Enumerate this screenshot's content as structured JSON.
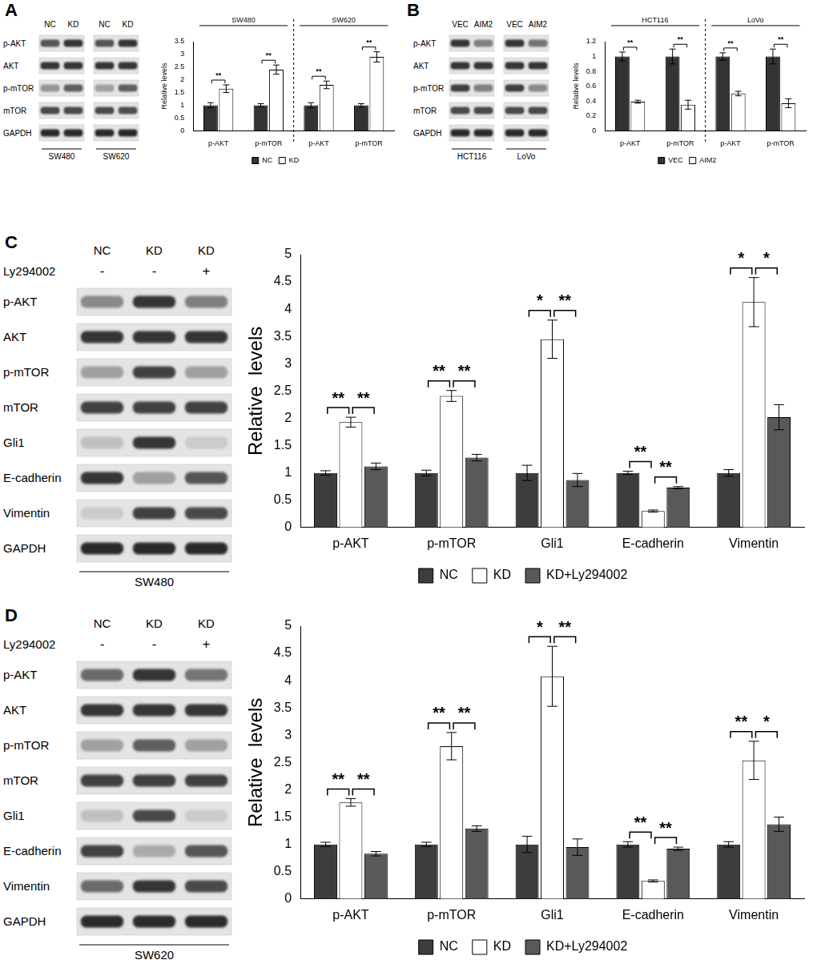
{
  "chart_data": [
    {
      "type": "bar",
      "panel": "A",
      "y_label": "Relative levels",
      "categories": [
        "p-AKT",
        "p-mTOR",
        "p-AKT",
        "p-mTOR"
      ],
      "groups": [
        "SW480",
        "SW620"
      ],
      "series": [
        {
          "name": "NC",
          "color": "#333333",
          "values": [
            1,
            1,
            1,
            1
          ],
          "errors": [
            0.1,
            0.06,
            0.1,
            0.06
          ]
        },
        {
          "name": "KD",
          "color": "#ffffff",
          "values": [
            1.65,
            2.4,
            1.8,
            2.9
          ],
          "errors": [
            0.15,
            0.18,
            0.15,
            0.2
          ]
        }
      ],
      "significance": [
        {
          "from": "NC",
          "to": "KD",
          "labels": [
            "**",
            "**",
            "**",
            "**"
          ]
        }
      ],
      "ylim": [
        0,
        3.5
      ],
      "yticks": [
        0,
        0.5,
        1,
        1.5,
        2,
        2.5,
        3,
        3.5
      ],
      "grid": false,
      "legend": "bottom"
    },
    {
      "type": "bar",
      "panel": "B",
      "y_label": "Relative levels",
      "categories": [
        "p-AKT",
        "p-mTOR",
        "p-AKT",
        "p-mTOR"
      ],
      "groups": [
        "HCT116",
        "LoVo"
      ],
      "series": [
        {
          "name": "VEC",
          "color": "#333333",
          "values": [
            1,
            1,
            1,
            1
          ],
          "errors": [
            0.06,
            0.1,
            0.05,
            0.1
          ]
        },
        {
          "name": "AIM2",
          "color": "#ffffff",
          "values": [
            0.39,
            0.35,
            0.5,
            0.37
          ],
          "errors": [
            0.02,
            0.06,
            0.03,
            0.06
          ]
        }
      ],
      "significance": [
        {
          "from": "VEC",
          "to": "AIM2",
          "labels": [
            "**",
            "**",
            "**",
            "**"
          ]
        }
      ],
      "ylim": [
        0,
        1.2
      ],
      "yticks": [
        0,
        0.2,
        0.4,
        0.6,
        0.8,
        1,
        1.2
      ],
      "grid": false,
      "legend": "bottom"
    },
    {
      "type": "bar",
      "panel": "C",
      "y_label": "Relative  levels",
      "categories": [
        "p-AKT",
        "p-mTOR",
        "Gli1",
        "E-cadherin",
        "Vimentin"
      ],
      "series": [
        {
          "name": "NC",
          "color": "#3d3d3d",
          "values": [
            1,
            1,
            1,
            1,
            1
          ],
          "errors": [
            0.04,
            0.05,
            0.14,
            0.03,
            0.06
          ]
        },
        {
          "name": "KD",
          "color": "#ffffff",
          "values": [
            1.93,
            2.41,
            3.45,
            0.3,
            4.13
          ],
          "errors": [
            0.09,
            0.1,
            0.35,
            0.02,
            0.45
          ]
        },
        {
          "name": "KD+Ly294002",
          "color": "#595959",
          "values": [
            1.12,
            1.28,
            0.87,
            0.73,
            2.02
          ],
          "errors": [
            0.06,
            0.06,
            0.12,
            0.02,
            0.23
          ]
        }
      ],
      "significance": [
        {
          "from": "NC",
          "to": "KD",
          "labels": [
            "**",
            "**",
            "*",
            "**",
            "*"
          ]
        },
        {
          "from": "KD",
          "to": "KD+Ly294002",
          "labels": [
            "**",
            "**",
            "**",
            "**",
            "*"
          ]
        }
      ],
      "ylim": [
        0,
        5
      ],
      "yticks": [
        0,
        0.5,
        1,
        1.5,
        2,
        2.5,
        3,
        3.5,
        4,
        4.5,
        5
      ],
      "grid": false,
      "legend": "bottom"
    },
    {
      "type": "bar",
      "panel": "D",
      "y_label": "Relative  levels",
      "categories": [
        "p-AKT",
        "p-mTOR",
        "Gli1",
        "E-cadherin",
        "Vimentin"
      ],
      "series": [
        {
          "name": "NC",
          "color": "#3d3d3d",
          "values": [
            1,
            1,
            1,
            1,
            1
          ],
          "errors": [
            0.04,
            0.04,
            0.15,
            0.05,
            0.05
          ]
        },
        {
          "name": "KD",
          "color": "#ffffff",
          "values": [
            1.77,
            2.8,
            4.08,
            0.33,
            2.54
          ],
          "errors": [
            0.07,
            0.25,
            0.55,
            0.02,
            0.35
          ]
        },
        {
          "name": "KD+Ly294002",
          "color": "#595959",
          "values": [
            0.83,
            1.29,
            0.95,
            0.92,
            1.37
          ],
          "errors": [
            0.04,
            0.05,
            0.15,
            0.03,
            0.13
          ]
        }
      ],
      "significance": [
        {
          "from": "NC",
          "to": "KD",
          "labels": [
            "**",
            "**",
            "*",
            "**",
            "**"
          ]
        },
        {
          "from": "KD",
          "to": "KD+Ly294002",
          "labels": [
            "**",
            "**",
            "**",
            "**",
            "*"
          ]
        }
      ],
      "ylim": [
        0,
        5
      ],
      "yticks": [
        0,
        0.5,
        1,
        1.5,
        2,
        2.5,
        3,
        3.5,
        4,
        4.5,
        5
      ],
      "grid": false,
      "legend": "bottom"
    }
  ],
  "blots": [
    {
      "row_labels": [
        "p-AKT",
        "AKT",
        "p-mTOR",
        "mTOR",
        "GAPDH"
      ],
      "groups": [
        {
          "label": "SW480",
          "lanes": [
            "NC",
            "KD"
          ],
          "bands": [
            [
              0.7,
              0.85
            ],
            [
              0.85,
              0.85
            ],
            [
              0.4,
              0.65
            ],
            [
              0.75,
              0.75
            ],
            [
              0.9,
              0.9
            ]
          ]
        },
        {
          "label": "SW620",
          "lanes": [
            "NC",
            "KD"
          ],
          "bands": [
            [
              0.7,
              0.85
            ],
            [
              0.85,
              0.85
            ],
            [
              0.35,
              0.65
            ],
            [
              0.75,
              0.72
            ],
            [
              0.9,
              0.9
            ]
          ]
        }
      ]
    },
    {
      "row_labels": [
        "p-AKT",
        "AKT",
        "p-mTOR",
        "mTOR",
        "GAPDH"
      ],
      "groups": [
        {
          "label": "HCT116",
          "lanes": [
            "VEC",
            "AIM2"
          ],
          "bands": [
            [
              0.85,
              0.5
            ],
            [
              0.85,
              0.85
            ],
            [
              0.8,
              0.5
            ],
            [
              0.75,
              0.75
            ],
            [
              0.9,
              0.9
            ]
          ]
        },
        {
          "label": "LoVo",
          "lanes": [
            "VEC",
            "AIM2"
          ],
          "bands": [
            [
              0.85,
              0.55
            ],
            [
              0.85,
              0.85
            ],
            [
              0.8,
              0.45
            ],
            [
              0.75,
              0.75
            ],
            [
              0.9,
              0.9
            ]
          ]
        }
      ]
    },
    {
      "row_labels": [
        "p-AKT",
        "AKT",
        "p-mTOR",
        "mTOR",
        "Gli1",
        "E-cadherin",
        "Vimentin",
        "GAPDH"
      ],
      "treatment_label": "Ly294002",
      "groups": [
        {
          "label": "SW480",
          "lanes": [
            "NC",
            "KD",
            "KD"
          ],
          "treatment": [
            "-",
            "-",
            "+"
          ],
          "bands": [
            [
              0.45,
              0.85,
              0.5
            ],
            [
              0.85,
              0.85,
              0.85
            ],
            [
              0.35,
              0.8,
              0.35
            ],
            [
              0.8,
              0.8,
              0.8
            ],
            [
              0.2,
              0.85,
              0.15
            ],
            [
              0.85,
              0.35,
              0.7
            ],
            [
              0.15,
              0.8,
              0.75
            ],
            [
              0.9,
              0.9,
              0.9
            ]
          ]
        }
      ]
    },
    {
      "row_labels": [
        "p-AKT",
        "AKT",
        "p-mTOR",
        "mTOR",
        "Gli1",
        "E-cadherin",
        "Vimentin",
        "GAPDH"
      ],
      "treatment_label": "Ly294002",
      "groups": [
        {
          "label": "SW620",
          "lanes": [
            "NC",
            "KD",
            "KD"
          ],
          "treatment": [
            "-",
            "-",
            "+"
          ],
          "bands": [
            [
              0.6,
              0.85,
              0.55
            ],
            [
              0.85,
              0.85,
              0.85
            ],
            [
              0.35,
              0.65,
              0.35
            ],
            [
              0.8,
              0.8,
              0.8
            ],
            [
              0.2,
              0.75,
              0.15
            ],
            [
              0.8,
              0.3,
              0.7
            ],
            [
              0.6,
              0.85,
              0.75
            ],
            [
              0.9,
              0.9,
              0.9
            ]
          ]
        }
      ]
    }
  ]
}
